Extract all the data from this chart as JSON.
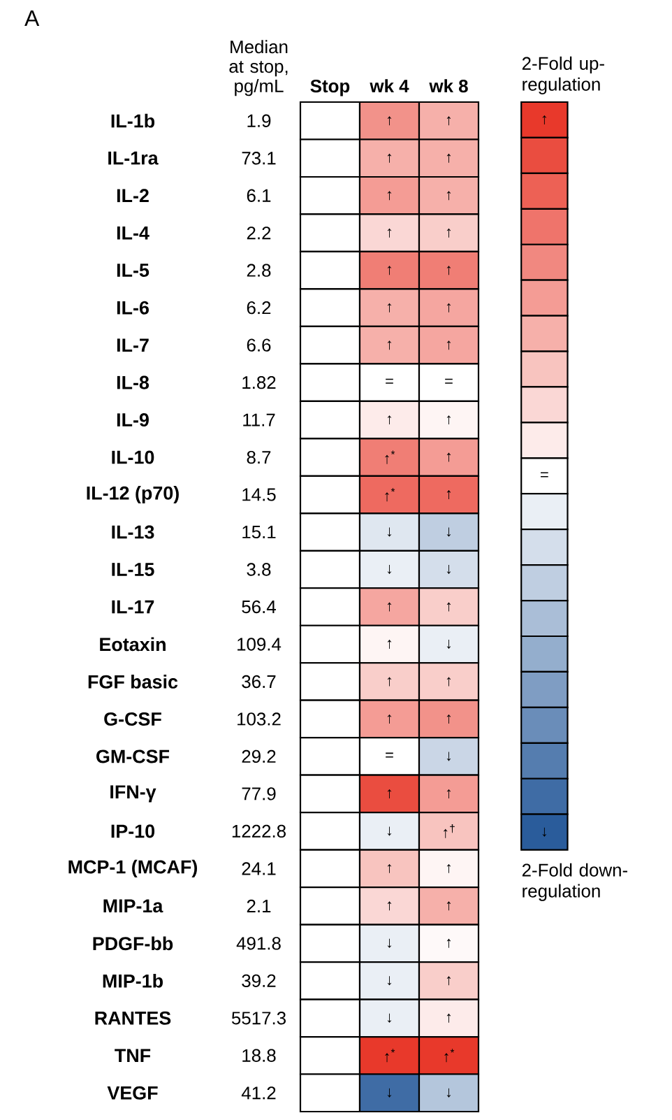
{
  "chart_data": {
    "type": "heatmap",
    "title": "A",
    "y2label": "Median at stop, pg/mL",
    "categories": [
      "Stop",
      "wk 4",
      "wk 8"
    ],
    "y_categories": [
      "IL-1b",
      "IL-1ra",
      "IL-2",
      "IL-4",
      "IL-5",
      "IL-6",
      "IL-7",
      "IL-8",
      "IL-9",
      "IL-10",
      "IL-12 (p70)",
      "IL-13",
      "IL-15",
      "IL-17",
      "Eotaxin",
      "FGF basic",
      "G-CSF",
      "GM-CSF",
      "IFN-γ",
      "IP-10",
      "MCP-1 (MCAF)",
      "MIP-1a",
      "PDGF-bb",
      "MIP-1b",
      "RANTES",
      "TNF",
      "VEGF"
    ],
    "y2_categories": [
      "1.9",
      "73.1",
      "6.1",
      "2.2",
      "2.8",
      "6.2",
      "6.6",
      "1.82",
      "11.7",
      "8.7",
      "14.5",
      "15.1",
      "3.8",
      "56.4",
      "109.4",
      "36.7",
      "103.2",
      "29.2",
      "77.9",
      "1222.8",
      "24.1",
      "2.1",
      "491.8",
      "39.2",
      "5517.3",
      "18.8",
      "41.2"
    ],
    "cells": [
      [
        0,
        0.55,
        0.4
      ],
      [
        0,
        0.4,
        0.4
      ],
      [
        0,
        0.5,
        0.4
      ],
      [
        0,
        0.2,
        0.25
      ],
      [
        0,
        0.65,
        0.65
      ],
      [
        0,
        0.4,
        0.45
      ],
      [
        0,
        0.4,
        0.45
      ],
      [
        0,
        0,
        0
      ],
      [
        0,
        0.1,
        0.05
      ],
      [
        0,
        0.65,
        0.5
      ],
      [
        0,
        0.75,
        0.75
      ],
      [
        0,
        -0.15,
        -0.3
      ],
      [
        0,
        -0.1,
        -0.2
      ],
      [
        0,
        0.45,
        0.25
      ],
      [
        0,
        0.05,
        -0.1
      ],
      [
        0,
        0.25,
        0.25
      ],
      [
        0,
        0.5,
        0.55
      ],
      [
        0,
        0,
        -0.25
      ],
      [
        0,
        0.9,
        0.5
      ],
      [
        0,
        -0.1,
        0.3
      ],
      [
        0,
        0.3,
        0.05
      ],
      [
        0,
        0.2,
        0.4
      ],
      [
        0,
        -0.1,
        0.03
      ],
      [
        0,
        -0.1,
        0.25
      ],
      [
        0,
        -0.1,
        0.1
      ],
      [
        0,
        1,
        1
      ],
      [
        0,
        -0.9,
        -0.35
      ]
    ],
    "cell_labels": [
      [
        null,
        "↑",
        "↑"
      ],
      [
        null,
        "↑",
        "↑"
      ],
      [
        null,
        "↑",
        "↑"
      ],
      [
        null,
        "↑",
        "↑"
      ],
      [
        null,
        "↑",
        "↑"
      ],
      [
        null,
        "↑",
        "↑"
      ],
      [
        null,
        "↑",
        "↑"
      ],
      [
        null,
        "=",
        "="
      ],
      [
        null,
        "↑",
        "↑"
      ],
      [
        null,
        "↑$^{*}$",
        "↑"
      ],
      [
        null,
        "↑$^{*}$",
        "↑"
      ],
      [
        null,
        "↓",
        "↓"
      ],
      [
        null,
        "↓",
        "↓"
      ],
      [
        null,
        "↑",
        "↑"
      ],
      [
        null,
        "↑",
        "↓"
      ],
      [
        null,
        "↑",
        "↑"
      ],
      [
        null,
        "↑",
        "↑"
      ],
      [
        null,
        "=",
        "↓"
      ],
      [
        null,
        "↑",
        "↑"
      ],
      [
        null,
        "↓",
        "↑$^{†}$"
      ],
      [
        null,
        "↑",
        "↑"
      ],
      [
        null,
        "↑",
        "↑"
      ],
      [
        null,
        "↓",
        "↑"
      ],
      [
        null,
        "↓",
        "↑"
      ],
      [
        null,
        "↓",
        "↑"
      ],
      [
        null,
        "↑$^{*}$",
        "↑$^{*}$"
      ],
      [
        null,
        "↓",
        "↓"
      ]
    ],
    "clim": [
      -1,
      1
    ],
    "cticks": [
      {
        "value": 1,
        "label": "↑"
      },
      {
        "value": 0,
        "label": "="
      },
      {
        "value": -1,
        "label": "↓"
      }
    ],
    "annotations": [
      "2-Fold up-regulation",
      "2-Fold down-regulation"
    ]
  }
}
